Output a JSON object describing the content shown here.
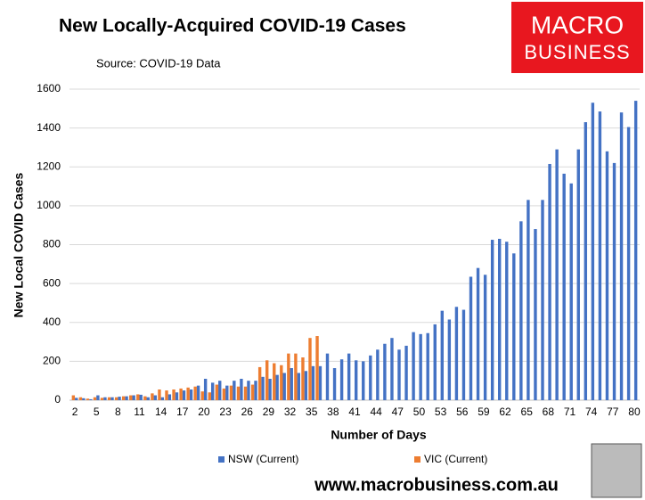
{
  "chart_data": {
    "type": "bar",
    "title": "New Locally-Acquired COVID-19 Cases",
    "subtitle": "Source: COVID-19 Data",
    "brand": [
      "MACRO",
      "BUSINESS"
    ],
    "website": "www.macrobusiness.com.au",
    "x_label": "Number of Days",
    "y_label": "New Local COVID Cases",
    "categories": [
      "2",
      null,
      null,
      "5",
      null,
      null,
      "8",
      null,
      null,
      "11",
      null,
      null,
      "14",
      null,
      null,
      "17",
      null,
      null,
      "20",
      null,
      null,
      "23",
      null,
      null,
      "26",
      null,
      null,
      "29",
      null,
      null,
      "32",
      null,
      null,
      "35",
      null,
      null,
      "38",
      null,
      null,
      "41",
      null,
      null,
      "44",
      null,
      null,
      "47",
      null,
      null,
      "50",
      null,
      null,
      "53",
      null,
      null,
      "56",
      null,
      null,
      "59",
      null,
      null,
      "62",
      null,
      null,
      "65",
      null,
      null,
      "68",
      null,
      null,
      "71",
      null,
      null,
      "74",
      null,
      null,
      "77",
      null,
      null,
      "80"
    ],
    "series": [
      {
        "name": "NSW (Current)",
        "color": "#4472c4",
        "values": [
          12,
          10,
          5,
          25,
          15,
          15,
          18,
          20,
          25,
          28,
          15,
          25,
          15,
          30,
          40,
          50,
          55,
          75,
          110,
          90,
          100,
          75,
          100,
          110,
          100,
          100,
          120,
          110,
          130,
          140,
          165,
          140,
          150,
          175,
          175,
          240,
          165,
          210,
          240,
          205,
          200,
          230,
          260,
          290,
          320,
          260,
          280,
          350,
          340,
          345,
          390,
          460,
          415,
          480,
          465,
          635,
          680,
          645,
          825,
          830,
          815,
          755,
          920,
          1030,
          880,
          1030,
          1215,
          1290,
          1165,
          1115,
          1290,
          1430,
          1530,
          1485,
          1280,
          1220,
          1480,
          1405,
          1540
        ]
      },
      {
        "name": "VIC (Current)",
        "color": "#ed7d31",
        "values": [
          25,
          15,
          8,
          15,
          12,
          15,
          15,
          20,
          25,
          30,
          20,
          35,
          55,
          50,
          55,
          60,
          65,
          70,
          45,
          40,
          80,
          60,
          75,
          70,
          70,
          80,
          170,
          205,
          190,
          180,
          240,
          240,
          220,
          320,
          330,
          null,
          null,
          null,
          null,
          null,
          null,
          null,
          null,
          null,
          null,
          null,
          null,
          null,
          null,
          null,
          null,
          null,
          null,
          null,
          null,
          null,
          null,
          null,
          null,
          null,
          null,
          null,
          null,
          null,
          null,
          null,
          null,
          null,
          null,
          null,
          null,
          null,
          null,
          null,
          null,
          null,
          null,
          null,
          null
        ]
      }
    ],
    "ylim": [
      0,
      1600
    ],
    "yticks": [
      0,
      200,
      400,
      600,
      800,
      1000,
      1200,
      1400,
      1600
    ],
    "grid": true
  }
}
